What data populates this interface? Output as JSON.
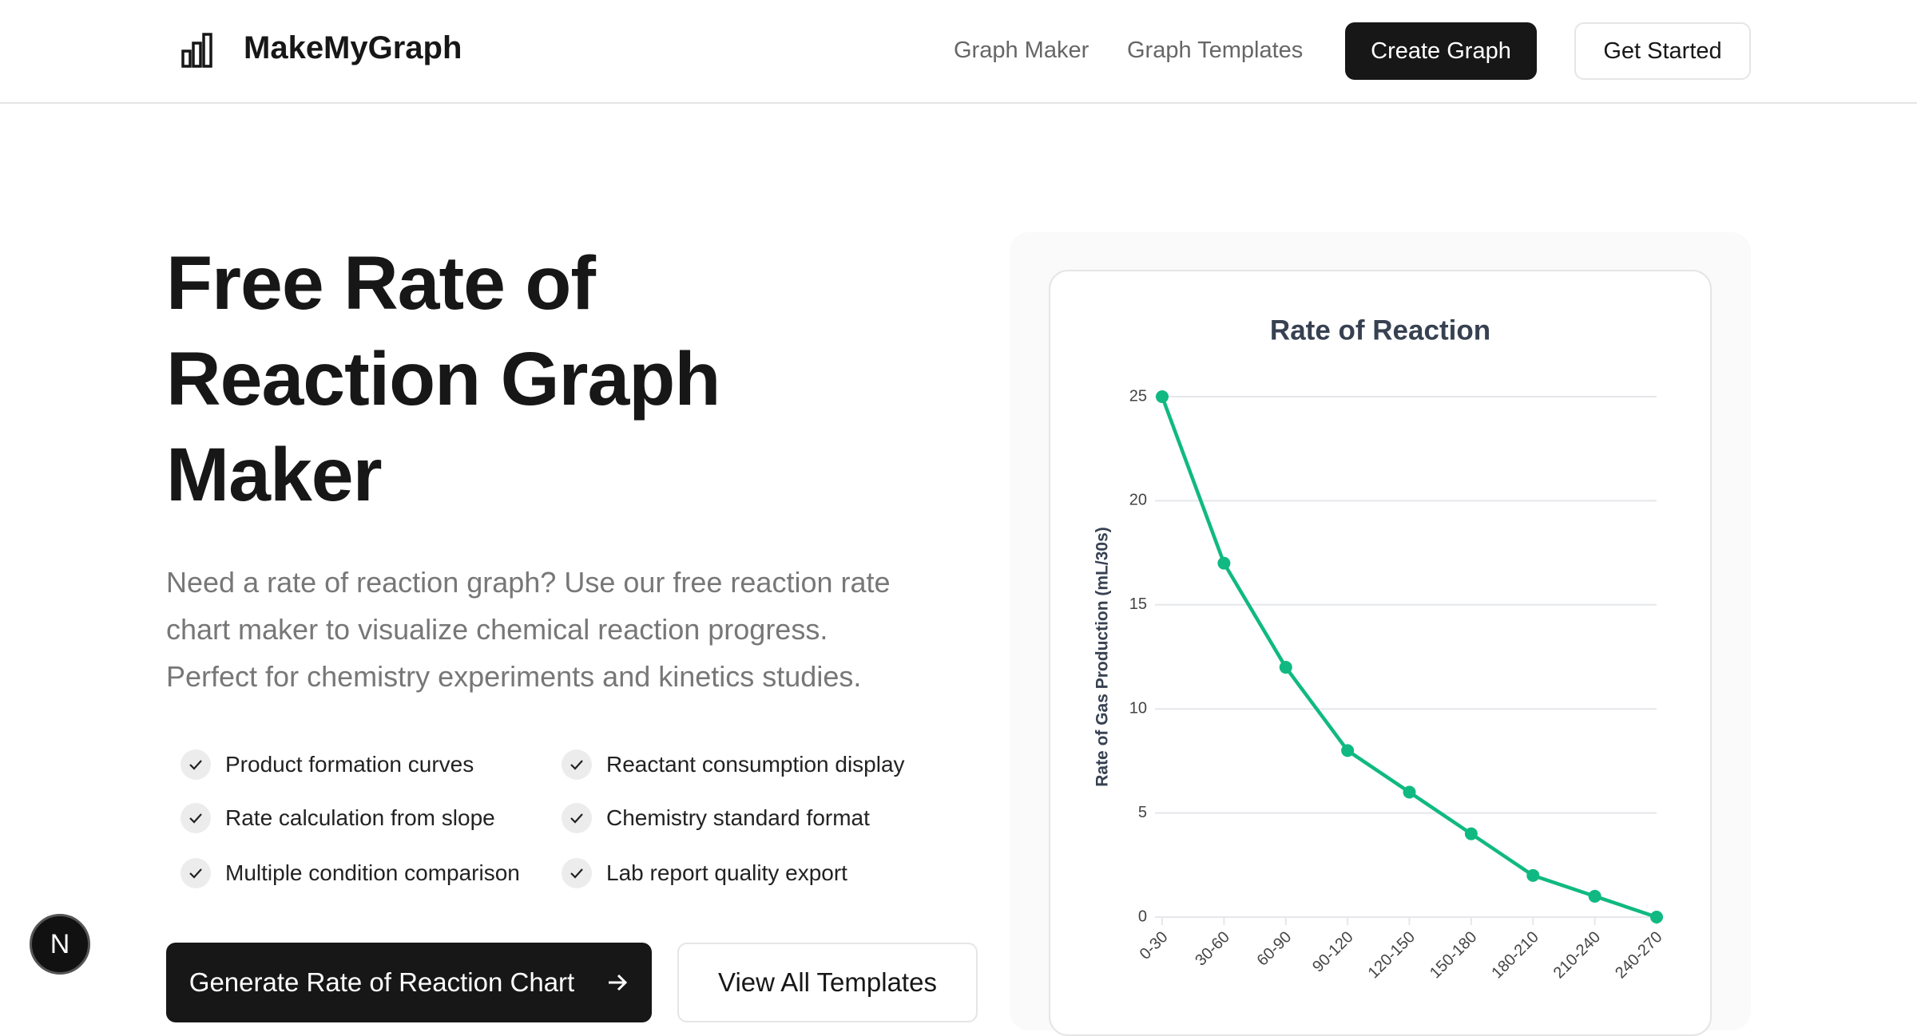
{
  "header": {
    "brand": "MakeMyGraph",
    "nav": [
      "Graph Maker",
      "Graph Templates"
    ],
    "create_button": "Create Graph",
    "start_button": "Get Started"
  },
  "hero": {
    "title_lines": [
      "Free Rate of",
      "Reaction Graph",
      "Maker"
    ],
    "description_lines": [
      "Need a rate of reaction graph? Use our free reaction rate",
      "chart maker to visualize chemical reaction progress.",
      "Perfect for chemistry experiments and kinetics studies."
    ],
    "features": [
      "Product formation curves",
      "Reactant consumption display",
      "Rate calculation from slope",
      "Chemistry standard format",
      "Multiple condition comparison",
      "Lab report quality export"
    ],
    "primary_button": "Generate Rate of Reaction Chart",
    "secondary_button": "View All Templates"
  },
  "badge": "N",
  "chart_data": {
    "type": "line",
    "title": "Rate of Reaction",
    "y_label": "Rate of Gas Production (mL/30s)",
    "categories": [
      "0-30",
      "30-60",
      "60-90",
      "90-120",
      "120-150",
      "150-180",
      "180-210",
      "210-240",
      "240-270"
    ],
    "values": [
      25,
      17,
      12,
      8,
      6,
      4,
      2,
      1,
      0
    ],
    "color": "#10b981",
    "ylim": [
      0,
      25
    ],
    "yticks": [
      0,
      5,
      10,
      15,
      20,
      25
    ],
    "grid": true
  }
}
